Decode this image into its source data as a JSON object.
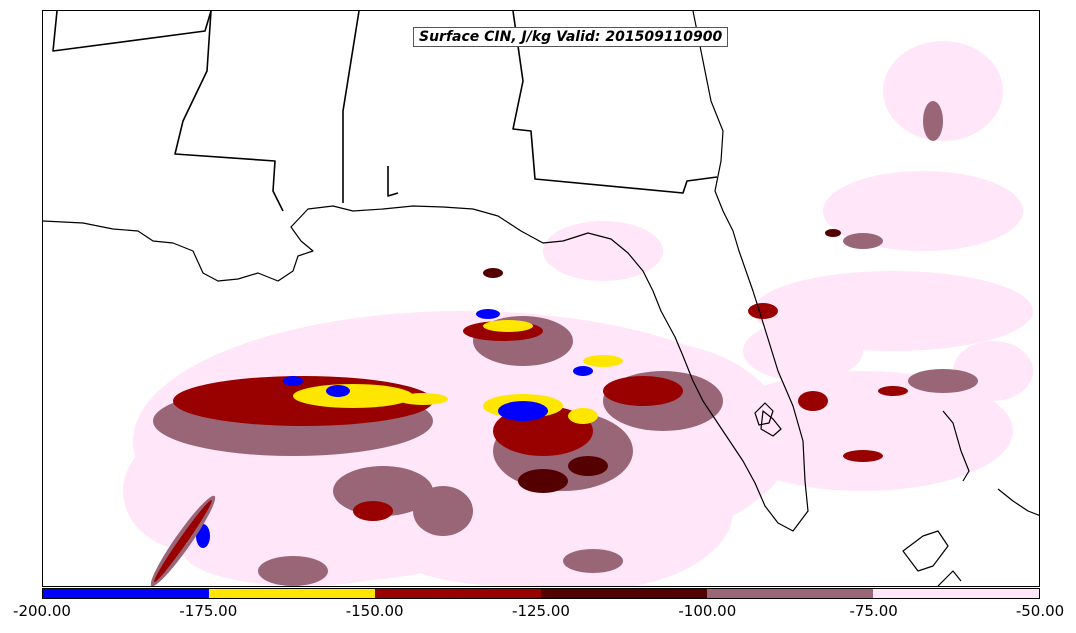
{
  "title": "Surface CIN, J/kg Valid: 201509110900",
  "colorbar": {
    "labels": [
      "-200.00",
      "-175.00",
      "-150.00",
      "-125.00",
      "-100.00",
      "-75.00",
      "-50.00"
    ],
    "colors": [
      "#0000ff",
      "#ffe600",
      "#990000",
      "#550000",
      "#996677",
      "#ffe6f8"
    ]
  },
  "palette": {
    "blue": "#0000ff",
    "yellow": "#ffe600",
    "red": "#990000",
    "dark": "#550000",
    "mauve": "#996677",
    "pink": "#ffe6f8",
    "boundary": "#000000"
  }
}
